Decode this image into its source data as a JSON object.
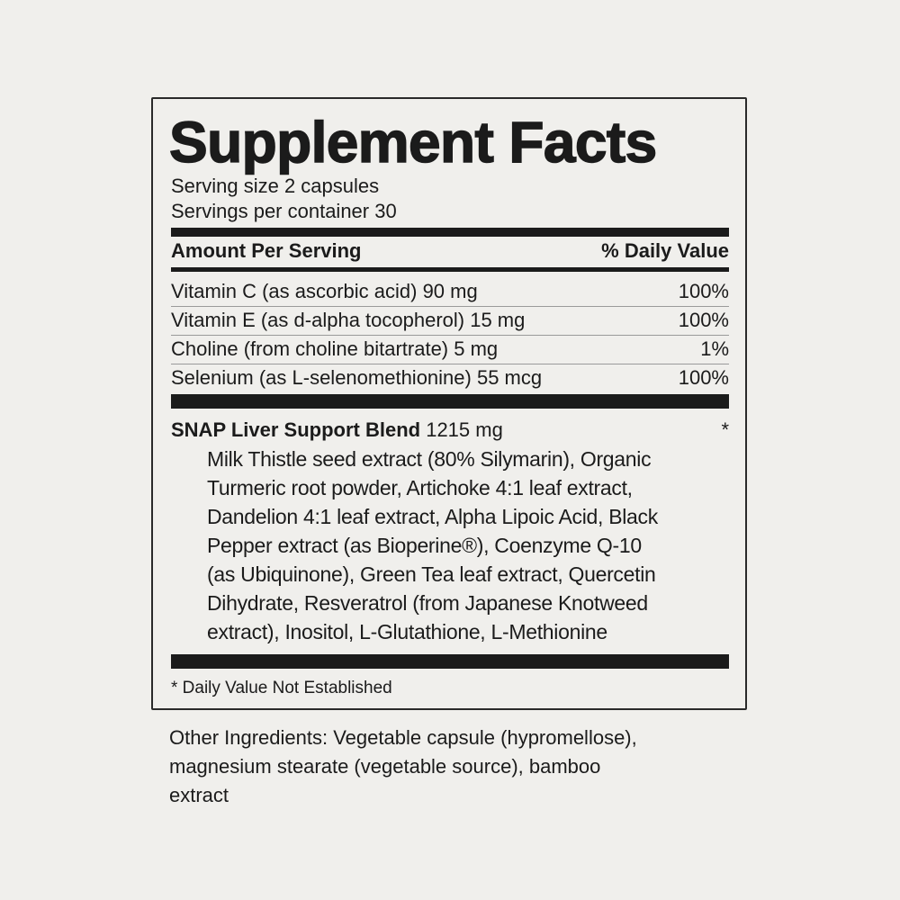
{
  "label": {
    "title": "Supplement Facts",
    "serving_size": "Serving size 2 capsules",
    "servings_per_container": "Servings per container 30",
    "header_amount": "Amount Per Serving",
    "header_dv": "% Daily Value",
    "nutrients": [
      {
        "name": "Vitamin C (as ascorbic acid) 90 mg",
        "dv": "100%"
      },
      {
        "name": "Vitamin E (as d-alpha tocopherol) 15 mg",
        "dv": "100%"
      },
      {
        "name": "Choline (from choline bitartrate) 5 mg",
        "dv": "1%"
      },
      {
        "name": "Selenium (as L-selenomethionine) 55 mcg",
        "dv": "100%"
      }
    ],
    "blend": {
      "name": "SNAP Liver Support Blend",
      "amount": "1215 mg",
      "dv": "*",
      "ingredients_lines": [
        "Milk Thistle seed extract (80% Silymarin), Organic",
        "Turmeric root powder, Artichoke 4:1 leaf extract,",
        "Dandelion 4:1 leaf extract, Alpha Lipoic Acid, Black",
        "Pepper extract (as Bioperine®), Coenzyme Q-10",
        "(as Ubiquinone), Green Tea leaf extract, Quercetin",
        "Dihydrate, Resveratrol (from Japanese Knotweed",
        "extract), Inositol, L-Glutathione, L-Methionine"
      ]
    },
    "footnote": "* Daily Value Not Established"
  },
  "other_ingredients_lines": [
    "Other Ingredients: Vegetable capsule (hypromellose),",
    "magnesium stearate (vegetable source), bamboo",
    "extract"
  ]
}
